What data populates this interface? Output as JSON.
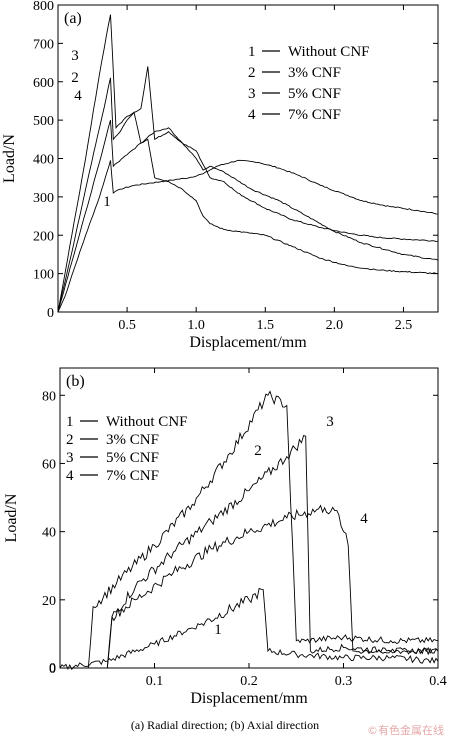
{
  "caption": "(a) Radial direction; (b) Axial direction",
  "watermark": "©有色金属在线",
  "chart_data": [
    {
      "type": "line",
      "panel_label": "(a)",
      "xlabel": "Displacement/mm",
      "ylabel": "Load/N",
      "xlim": [
        0,
        2.75
      ],
      "ylim": [
        0,
        800
      ],
      "xticks": [
        "0.5",
        "1.0",
        "1.5",
        "2.0",
        "2.5"
      ],
      "yticks": [
        "0",
        "100",
        "200",
        "300",
        "400",
        "500",
        "600",
        "700",
        "800"
      ],
      "legend": "top-right",
      "series": [
        {
          "name": "Without CNF",
          "label": "1",
          "x": [
            0,
            0.05,
            0.1,
            0.2,
            0.3,
            0.38,
            0.4,
            0.45,
            0.55,
            0.65,
            0.75,
            0.85,
            0.95,
            1.05,
            1.1,
            1.15,
            1.3,
            1.45,
            1.6,
            1.75,
            1.9,
            2.05,
            2.2,
            2.4,
            2.6,
            2.75
          ],
          "y": [
            0,
            40,
            95,
            200,
            300,
            395,
            310,
            320,
            330,
            335,
            340,
            345,
            350,
            360,
            370,
            380,
            395,
            390,
            375,
            355,
            330,
            310,
            290,
            275,
            265,
            255
          ]
        },
        {
          "name": "3% CNF",
          "label": "2",
          "x": [
            0,
            0.1,
            0.2,
            0.3,
            0.35,
            0.38,
            0.4,
            0.45,
            0.5,
            0.55,
            0.6,
            0.7,
            0.8,
            0.9,
            1.0,
            1.1,
            1.2,
            1.3,
            1.5,
            1.7,
            1.9,
            2.1,
            2.3,
            2.5,
            2.75
          ],
          "y": [
            0,
            155,
            320,
            480,
            560,
            610,
            450,
            470,
            500,
            520,
            440,
            470,
            480,
            440,
            420,
            350,
            340,
            310,
            270,
            240,
            220,
            205,
            195,
            190,
            185
          ]
        },
        {
          "name": "5% CNF",
          "label": "3",
          "x": [
            0,
            0.1,
            0.2,
            0.3,
            0.35,
            0.38,
            0.42,
            0.5,
            0.55,
            0.6,
            0.65,
            0.7,
            0.8,
            0.9,
            1.0,
            1.05,
            1.1,
            1.2,
            1.4,
            1.6,
            1.8,
            2.0,
            2.2,
            2.5,
            2.75
          ],
          "y": [
            0,
            200,
            400,
            620,
            720,
            775,
            480,
            510,
            520,
            530,
            640,
            450,
            470,
            440,
            400,
            370,
            380,
            365,
            320,
            290,
            250,
            210,
            180,
            150,
            135
          ]
        },
        {
          "name": "7% CNF",
          "label": "4",
          "x": [
            0,
            0.1,
            0.2,
            0.3,
            0.35,
            0.38,
            0.4,
            0.5,
            0.6,
            0.65,
            0.7,
            0.8,
            0.9,
            1.0,
            1.05,
            1.1,
            1.2,
            1.3,
            1.5,
            1.7,
            1.9,
            2.1,
            2.3,
            2.5,
            2.75
          ],
          "y": [
            0,
            130,
            260,
            390,
            460,
            500,
            380,
            410,
            440,
            450,
            350,
            340,
            320,
            290,
            250,
            230,
            215,
            210,
            200,
            170,
            140,
            120,
            110,
            105,
            100
          ]
        }
      ]
    },
    {
      "type": "line",
      "panel_label": "(b)",
      "xlabel": "Displacement/mm",
      "ylabel": "Load/N",
      "xlim": [
        0,
        0.4
      ],
      "ylim": [
        0,
        88
      ],
      "xticks": [
        "0.1",
        "0.2",
        "0.3",
        "0.4"
      ],
      "yticks": [
        "0",
        "20",
        "40",
        "60",
        "80"
      ],
      "legend": "top-left",
      "series": [
        {
          "name": "Without CNF",
          "label": "1",
          "x": [
            0,
            0.05,
            0.1,
            0.15,
            0.2,
            0.215,
            0.22,
            0.25,
            0.3,
            0.35,
            0.4
          ],
          "y": [
            0,
            2,
            7,
            13,
            20,
            23,
            5,
            4,
            3,
            3,
            2
          ]
        },
        {
          "name": "3% CNF",
          "label": "2",
          "x": [
            0.03,
            0.035,
            0.06,
            0.1,
            0.14,
            0.18,
            0.22,
            0.24,
            0.25,
            0.26,
            0.3,
            0.35,
            0.4
          ],
          "y": [
            0,
            18,
            25,
            36,
            48,
            63,
            80,
            77,
            8,
            8,
            9,
            8,
            8
          ]
        },
        {
          "name": "5% CNF",
          "label": "3",
          "x": [
            0.05,
            0.055,
            0.08,
            0.12,
            0.16,
            0.2,
            0.24,
            0.26,
            0.265,
            0.3,
            0.35,
            0.4
          ],
          "y": [
            0,
            15,
            24,
            34,
            43,
            52,
            62,
            68,
            5,
            6,
            5,
            5
          ]
        },
        {
          "name": "7% CNF",
          "label": "4",
          "x": [
            0.05,
            0.055,
            0.08,
            0.12,
            0.16,
            0.2,
            0.24,
            0.28,
            0.295,
            0.3,
            0.305,
            0.31,
            0.35,
            0.4
          ],
          "y": [
            0,
            15,
            20,
            28,
            35,
            40,
            44,
            47,
            45,
            40,
            36,
            5,
            5,
            5
          ]
        }
      ]
    }
  ]
}
